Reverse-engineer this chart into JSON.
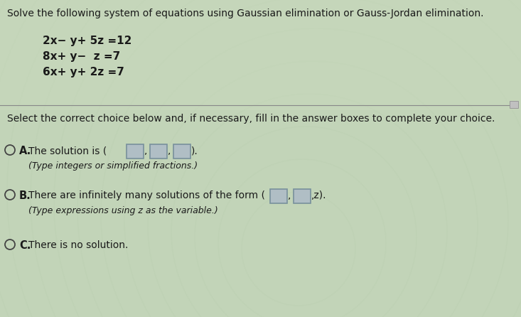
{
  "bg_color": "#c2d4b8",
  "text_color": "#1a1a1a",
  "title": "Solve the following system of equations using Gaussian elimination or Gauss-Jordan elimination.",
  "eq1": "2x− y+ 5z =12",
  "eq2": "8x+ y−  z =7",
  "eq3": "6x+ y+ 2z =7",
  "select_text": "Select the correct choice below and, if necessary, fill in the answer boxes to complete your choice.",
  "choice_A_pre": "The solution is (",
  "choice_A_post": ").",
  "choice_A_sub": "(Type integers or simplified fractions.)",
  "choice_B_pre": "There are infinitely many solutions of the form (",
  "choice_B_post": ",z).",
  "choice_B_sub": "(Type expressions using z as the variable.)",
  "choice_C": "There is no solution.",
  "box_fill": "#b0bec5",
  "box_edge": "#78909c",
  "circle_edge": "#444444",
  "divider_color": "#888888",
  "small_rect_fill": "#c0c0c0",
  "small_rect_edge": "#999999"
}
